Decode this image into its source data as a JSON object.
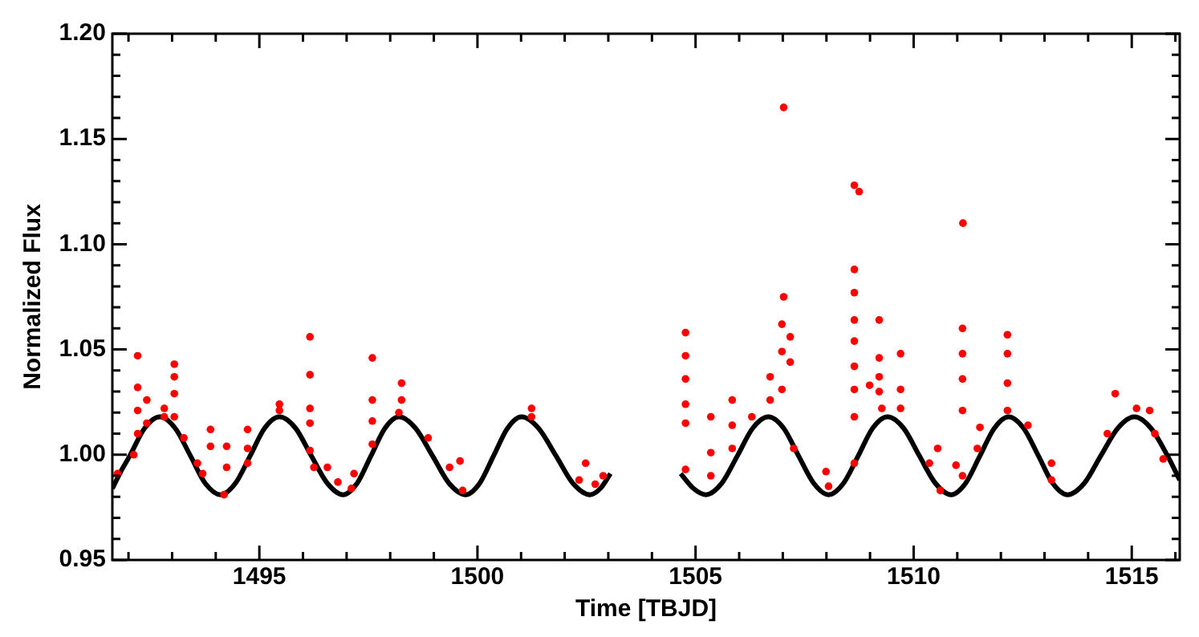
{
  "chart_data": {
    "type": "scatter",
    "xlabel": "Time [TBJD]",
    "ylabel": "Normalized Flux",
    "xlim": [
      1491.63,
      1516.1
    ],
    "ylim": [
      0.95,
      1.2
    ],
    "xticks": [
      {
        "value": 1492,
        "label": null
      },
      {
        "value": 1493,
        "label": null
      },
      {
        "value": 1494,
        "label": null
      },
      1495,
      {
        "value": 1496,
        "label": null
      },
      {
        "value": 1497,
        "label": null
      },
      {
        "value": 1498,
        "label": null
      },
      {
        "value": 1499,
        "label": null
      },
      1500,
      {
        "value": 1501,
        "label": null
      },
      {
        "value": 1502,
        "label": null
      },
      {
        "value": 1503,
        "label": null
      },
      {
        "value": 1504,
        "label": null
      },
      1505,
      {
        "value": 1506,
        "label": null
      },
      {
        "value": 1507,
        "label": null
      },
      {
        "value": 1508,
        "label": null
      },
      {
        "value": 1509,
        "label": null
      },
      1510,
      {
        "value": 1511,
        "label": null
      },
      {
        "value": 1512,
        "label": null
      },
      {
        "value": 1513,
        "label": null
      },
      {
        "value": 1514,
        "label": null
      },
      1515,
      {
        "value": 1516,
        "label": null
      }
    ],
    "yticks": [
      0.95,
      {
        "value": 0.96,
        "label": null
      },
      {
        "value": 0.97,
        "label": null
      },
      {
        "value": 0.98,
        "label": null
      },
      {
        "value": 0.99,
        "label": null
      },
      {
        "value": 1,
        "label": "1.00"
      },
      {
        "value": 1.01,
        "label": null
      },
      {
        "value": 1.02,
        "label": null
      },
      {
        "value": 1.03,
        "label": null
      },
      {
        "value": 1.04,
        "label": null
      },
      1.05,
      {
        "value": 1.06,
        "label": null
      },
      {
        "value": 1.07,
        "label": null
      },
      {
        "value": 1.08,
        "label": null
      },
      {
        "value": 1.09,
        "label": null
      },
      {
        "value": 1.1,
        "label": "1.10"
      },
      {
        "value": 1.11,
        "label": null
      },
      {
        "value": 1.12,
        "label": null
      },
      {
        "value": 1.13,
        "label": null
      },
      {
        "value": 1.14,
        "label": null
      },
      1.15,
      {
        "value": 1.16,
        "label": null
      },
      {
        "value": 1.17,
        "label": null
      },
      {
        "value": 1.18,
        "label": null
      },
      {
        "value": 1.19,
        "label": null
      },
      {
        "value": 1.2,
        "label": "1.20"
      }
    ],
    "grid": false,
    "legend": false,
    "marker": "circle",
    "series": [
      {
        "type": "line",
        "marker": "none",
        "color": "#000000",
        "x": [
          1491.63,
          1491.85,
          1492.03,
          1492.37,
          1492.72,
          1493.07,
          1493.42,
          1493.76,
          1494.11,
          1494.45,
          1494.79,
          1495.12,
          1495.46,
          1495.83,
          1496.19,
          1496.56,
          1496.92,
          1497.24,
          1497.56,
          1497.88,
          1498.2,
          1498.58,
          1498.97,
          1499.35,
          1499.73,
          1500.05,
          1500.37,
          1500.69,
          1501.01,
          1501.4,
          1501.8,
          1502.19,
          1502.58,
          1502.82,
          1503.05,
          1503.8,
          1504.66,
          1504.95,
          1505.24,
          1505.6,
          1505.96,
          1506.31,
          1506.67,
          1507.02,
          1507.36,
          1507.71,
          1508.05,
          1508.39,
          1508.73,
          1509.06,
          1509.4,
          1509.77,
          1510.13,
          1510.5,
          1510.86,
          1511.19,
          1511.52,
          1511.85,
          1512.18,
          1512.52,
          1512.86,
          1513.19,
          1513.53,
          1513.91,
          1514.29,
          1514.68,
          1515.06,
          1515.44,
          1515.82,
          1516.1
        ],
        "values": [
          0.984,
          0.993,
          0.9995,
          1.0126,
          1.018,
          1.0126,
          0.9995,
          0.9864,
          0.981,
          0.9864,
          0.9995,
          1.0126,
          1.018,
          1.0126,
          0.9995,
          0.9864,
          0.981,
          0.9864,
          0.9995,
          1.0126,
          1.018,
          1.0126,
          0.9995,
          0.9864,
          0.981,
          0.9864,
          0.9995,
          1.0126,
          1.018,
          1.0126,
          0.9995,
          0.9864,
          0.981,
          0.984,
          0.991,
          null,
          0.991,
          0.984,
          0.981,
          0.9864,
          0.9995,
          1.0126,
          1.018,
          1.0126,
          0.9995,
          0.9864,
          0.981,
          0.9864,
          0.9995,
          1.0126,
          1.018,
          1.0126,
          0.9995,
          0.9864,
          0.981,
          0.9864,
          0.9995,
          1.0126,
          1.018,
          1.0126,
          0.9995,
          0.9864,
          0.981,
          0.9864,
          0.9995,
          1.0126,
          1.018,
          1.0126,
          0.9995,
          0.988
        ]
      },
      {
        "type": "scatter",
        "color": "#ff0000",
        "x": [
          1491.75,
          1492.12,
          1492.21,
          1492.21,
          1492.21,
          1492.21,
          1492.42,
          1492.42,
          1492.82,
          1492.82,
          1493.05,
          1493.05,
          1493.05,
          1493.05,
          1493.27,
          1493.58,
          1493.7,
          1493.88,
          1493.88,
          1494.19,
          1494.25,
          1494.25,
          1494.73,
          1494.73,
          1494.73,
          1495.46,
          1495.46,
          1496.16,
          1496.16,
          1496.16,
          1496.16,
          1496.16,
          1496.25,
          1496.56,
          1496.8,
          1497.11,
          1497.17,
          1497.59,
          1497.59,
          1497.59,
          1497.59,
          1498.2,
          1498.26,
          1498.26,
          1498.87,
          1499.36,
          1499.6,
          1499.66,
          1501.24,
          1501.24,
          1502.33,
          1502.48,
          1502.7,
          1502.88,
          1504.77,
          1504.77,
          1504.77,
          1504.77,
          1504.77,
          1504.77,
          1505.35,
          1505.35,
          1505.35,
          1505.84,
          1505.84,
          1505.84,
          1506.29,
          1506.71,
          1506.71,
          1506.98,
          1506.98,
          1507.02,
          1507.02,
          1506.98,
          1507.17,
          1507.17,
          1507.25,
          1507.99,
          1508.05,
          1508.64,
          1508.64,
          1508.64,
          1508.64,
          1508.64,
          1508.64,
          1508.64,
          1508.64,
          1508.64,
          1508.75,
          1508.99,
          1509.21,
          1509.21,
          1509.21,
          1509.21,
          1509.27,
          1509.7,
          1509.7,
          1509.7,
          1510.36,
          1510.55,
          1510.61,
          1510.97,
          1511.12,
          1511.12,
          1511.12,
          1511.12,
          1511.12,
          1511.13,
          1511.46,
          1511.52,
          1512.15,
          1512.15,
          1512.15,
          1512.15,
          1512.62,
          1513.16,
          1513.16,
          1514.44,
          1514.62,
          1515.11,
          1515.41,
          1515.53,
          1515.72
        ],
        "values": [
          0.991,
          1.0,
          1.047,
          1.032,
          1.021,
          1.01,
          1.026,
          1.015,
          1.022,
          1.018,
          1.043,
          1.037,
          1.029,
          1.018,
          1.008,
          0.996,
          0.991,
          1.012,
          1.004,
          0.981,
          1.004,
          0.994,
          1.012,
          1.003,
          0.996,
          1.021,
          1.024,
          1.056,
          1.038,
          1.022,
          1.015,
          1.002,
          0.994,
          0.994,
          0.987,
          0.984,
          0.991,
          1.046,
          1.026,
          1.016,
          1.005,
          1.02,
          1.034,
          1.026,
          1.008,
          0.994,
          0.997,
          0.983,
          1.022,
          1.018,
          0.988,
          0.996,
          0.986,
          0.99,
          1.058,
          1.047,
          1.036,
          1.024,
          1.015,
          0.993,
          1.018,
          1.001,
          0.99,
          1.026,
          1.014,
          1.003,
          1.018,
          1.037,
          1.026,
          1.062,
          1.049,
          1.165,
          1.075,
          1.031,
          1.056,
          1.044,
          1.003,
          0.992,
          0.985,
          1.128,
          1.088,
          1.077,
          1.064,
          1.054,
          1.042,
          1.031,
          1.018,
          0.996,
          1.125,
          1.033,
          1.064,
          1.046,
          1.037,
          1.03,
          1.022,
          1.048,
          1.031,
          1.022,
          0.996,
          1.003,
          0.983,
          0.995,
          1.06,
          1.048,
          1.036,
          1.021,
          0.99,
          1.11,
          1.003,
          1.013,
          1.057,
          1.048,
          1.034,
          1.021,
          1.014,
          0.996,
          0.988,
          1.01,
          1.029,
          1.022,
          1.021,
          1.01,
          0.998
        ]
      }
    ]
  }
}
